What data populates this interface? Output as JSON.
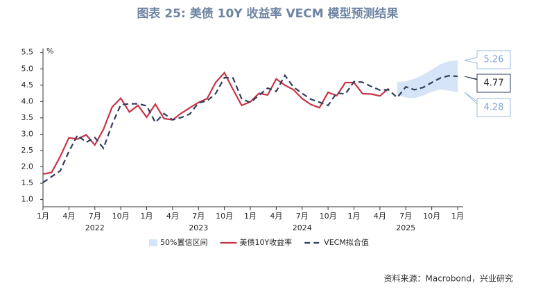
{
  "chart_data": {
    "type": "line",
    "title": "图表 25: 美债 10Y 收益率 VECM 模型预测结果",
    "y_unit": "%",
    "source": "资料来源：Macrobond，兴业研究",
    "x": [
      "2022-01",
      "2022-02",
      "2022-03",
      "2022-04",
      "2022-05",
      "2022-06",
      "2022-07",
      "2022-08",
      "2022-09",
      "2022-10",
      "2022-11",
      "2022-12",
      "2023-01",
      "2023-02",
      "2023-03",
      "2023-04",
      "2023-05",
      "2023-06",
      "2023-07",
      "2023-08",
      "2023-09",
      "2023-10",
      "2023-11",
      "2023-12",
      "2024-01",
      "2024-02",
      "2024-03",
      "2024-04",
      "2024-05",
      "2024-06",
      "2024-07",
      "2024-08",
      "2024-09",
      "2024-10",
      "2024-11",
      "2024-12",
      "2025-01",
      "2025-02",
      "2025-03",
      "2025-04",
      "2025-05",
      "2025-06",
      "2025-07",
      "2025-08",
      "2025-09",
      "2025-10",
      "2025-11",
      "2025-12",
      "2026-01"
    ],
    "xlim": [
      "2022-01",
      "2026-01"
    ],
    "xticks": [
      {
        "value": "2022-01",
        "label": "1月"
      },
      {
        "value": "2022-04",
        "label": "4月"
      },
      {
        "value": "2022-07",
        "label": "7月"
      },
      {
        "value": "2022-10",
        "label": "10月"
      },
      {
        "value": "2023-01",
        "label": "1月"
      },
      {
        "value": "2023-04",
        "label": "4月"
      },
      {
        "value": "2023-07",
        "label": "7月"
      },
      {
        "value": "2023-10",
        "label": "10月"
      },
      {
        "value": "2024-01",
        "label": "1月"
      },
      {
        "value": "2024-04",
        "label": "4月"
      },
      {
        "value": "2024-07",
        "label": "7月"
      },
      {
        "value": "2024-10",
        "label": "10月"
      },
      {
        "value": "2025-01",
        "label": "1月"
      },
      {
        "value": "2025-04",
        "label": "4月"
      },
      {
        "value": "2025-07",
        "label": "7月"
      },
      {
        "value": "2025-10",
        "label": "10月"
      },
      {
        "value": "2026-01",
        "label": "1月"
      }
    ],
    "year_labels": [
      "2022",
      "2023",
      "2024",
      "2025"
    ],
    "ylim": [
      0.8,
      5.6
    ],
    "yticks": [
      {
        "value": 1,
        "label": "1.0"
      },
      1.5,
      {
        "value": 2,
        "label": "2.0"
      },
      2.5,
      {
        "value": 3,
        "label": "3.0"
      },
      3.5,
      {
        "value": 4,
        "label": "4.0"
      },
      4.5,
      {
        "value": 5,
        "label": "5.0"
      },
      5.5
    ],
    "band": {
      "name": "50%置信区间",
      "color": "#d6e4f7",
      "lower": [
        null,
        null,
        null,
        null,
        null,
        null,
        null,
        null,
        null,
        null,
        null,
        null,
        null,
        null,
        null,
        null,
        null,
        null,
        null,
        null,
        null,
        null,
        null,
        null,
        null,
        null,
        null,
        null,
        null,
        null,
        null,
        null,
        null,
        null,
        null,
        null,
        null,
        null,
        null,
        null,
        null,
        4.2,
        4.12,
        4.1,
        4.18,
        4.3,
        4.37,
        4.33,
        4.28
      ],
      "upper": [
        null,
        null,
        null,
        null,
        null,
        null,
        null,
        null,
        null,
        null,
        null,
        null,
        null,
        null,
        null,
        null,
        null,
        null,
        null,
        null,
        null,
        null,
        null,
        null,
        null,
        null,
        null,
        null,
        null,
        null,
        null,
        null,
        null,
        null,
        null,
        null,
        null,
        null,
        null,
        null,
        null,
        4.6,
        4.62,
        4.7,
        4.82,
        4.98,
        5.14,
        5.24,
        5.26
      ]
    },
    "series": [
      {
        "name": "美债10Y收益率",
        "color": "#c83346",
        "dash": false,
        "values": [
          1.78,
          1.83,
          2.32,
          2.89,
          2.85,
          2.98,
          2.67,
          3.15,
          3.83,
          4.1,
          3.68,
          3.88,
          3.52,
          3.92,
          3.48,
          3.44,
          3.64,
          3.81,
          3.97,
          4.09,
          4.59,
          4.88,
          4.37,
          3.88,
          3.99,
          4.25,
          4.2,
          4.69,
          4.5,
          4.36,
          4.09,
          3.91,
          3.81,
          4.28,
          4.18,
          4.58,
          4.58,
          4.24,
          4.23,
          4.17,
          4.4,
          null,
          null,
          null,
          null,
          null,
          null,
          null,
          null
        ]
      },
      {
        "name": "VECM拟合值",
        "color": "#2f3e5c",
        "dash": true,
        "values": [
          1.52,
          1.7,
          1.88,
          2.47,
          2.97,
          2.75,
          2.9,
          2.57,
          3.3,
          3.9,
          3.93,
          3.93,
          3.87,
          3.36,
          3.63,
          3.44,
          3.51,
          3.62,
          3.96,
          4.02,
          4.25,
          4.73,
          4.72,
          4.08,
          3.97,
          4.19,
          4.41,
          4.31,
          4.8,
          4.44,
          4.25,
          4.07,
          3.98,
          3.88,
          4.26,
          4.23,
          4.61,
          4.59,
          4.46,
          4.35,
          4.36,
          4.12,
          4.45,
          4.36,
          4.43,
          4.58,
          4.72,
          4.79,
          4.77
        ]
      }
    ],
    "annotations": [
      5.26,
      4.77,
      4.28
    ]
  }
}
